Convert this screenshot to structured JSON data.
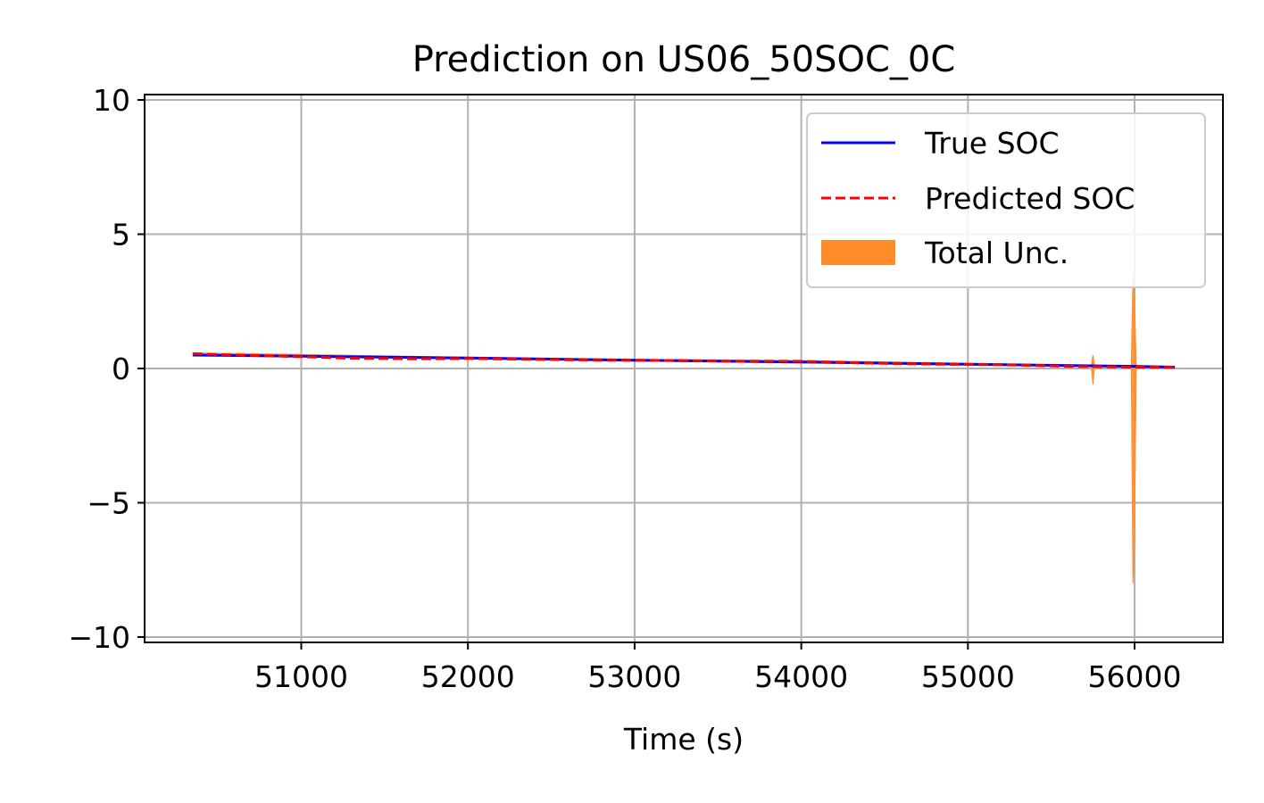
{
  "chart_data": {
    "type": "line",
    "title": "Prediction on US06_50SOC_0C",
    "xlabel": "Time (s)",
    "ylabel": "",
    "xlim": [
      50060,
      56530
    ],
    "ylim": [
      -10.2,
      10.2
    ],
    "xticks": [
      51000,
      52000,
      53000,
      54000,
      55000,
      56000
    ],
    "xtick_labels": [
      "51000",
      "52000",
      "53000",
      "54000",
      "55000",
      "56000"
    ],
    "yticks": [
      10,
      5,
      0,
      -5,
      -10
    ],
    "ytick_labels": [
      "10",
      "5",
      "0",
      "−5",
      "−10"
    ],
    "grid": true,
    "legend_position": "upper right",
    "series": [
      {
        "name": "True SOC",
        "style": "solid",
        "color": "#0000ff",
        "x": [
          50350,
          51000,
          52000,
          53000,
          54000,
          55000,
          56000,
          56240
        ],
        "y": [
          0.5,
          0.46,
          0.39,
          0.31,
          0.24,
          0.16,
          0.08,
          0.05
        ]
      },
      {
        "name": "Predicted SOC",
        "style": "dashed",
        "color": "#ff0000",
        "x": [
          50350,
          50600,
          51000,
          51300,
          51700,
          52000,
          52400,
          52800,
          53200,
          53600,
          54000,
          54400,
          54800,
          55200,
          55600,
          56000,
          56240
        ],
        "y": [
          0.55,
          0.5,
          0.44,
          0.38,
          0.36,
          0.37,
          0.34,
          0.31,
          0.3,
          0.27,
          0.27,
          0.2,
          0.16,
          0.14,
          0.08,
          0.05,
          0.04
        ]
      }
    ],
    "uncertainty": {
      "name": "Total Unc.",
      "color": "#ff8c28",
      "x": [
        50350,
        51000,
        52000,
        53000,
        54000,
        55000,
        55740,
        55750,
        55760,
        55980,
        55990,
        56000,
        56010,
        56240
      ],
      "lower": [
        0.48,
        0.44,
        0.36,
        0.28,
        0.21,
        0.13,
        0.1,
        -0.6,
        0.1,
        0.05,
        -8.0,
        -6.0,
        0.04,
        0.02
      ],
      "upper": [
        0.58,
        0.52,
        0.42,
        0.34,
        0.3,
        0.19,
        0.12,
        0.5,
        0.12,
        0.08,
        3.5,
        2.5,
        0.09,
        0.07
      ]
    }
  }
}
